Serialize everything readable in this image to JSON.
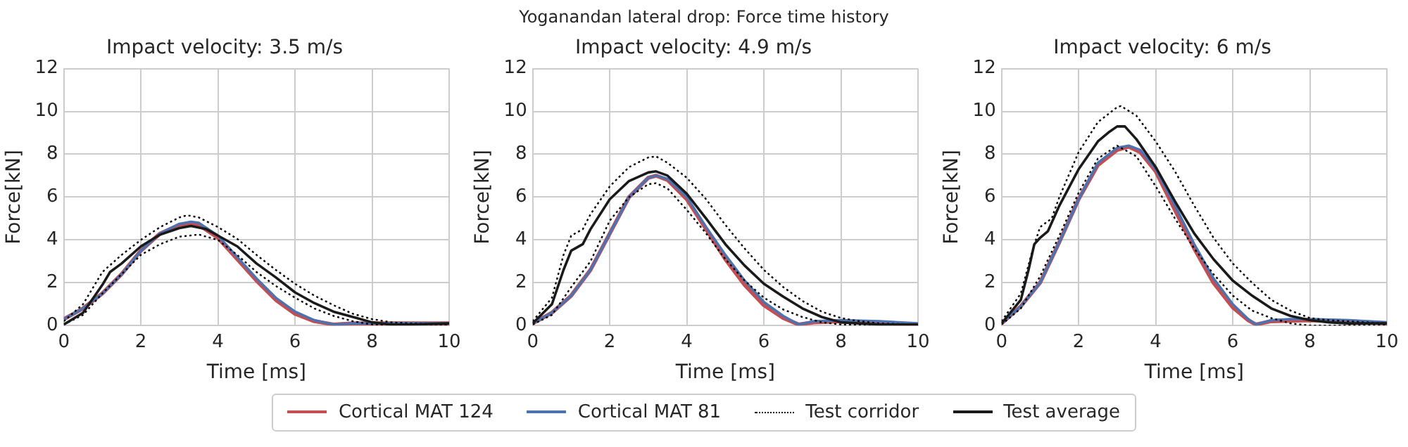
{
  "chart_data": [
    {
      "type": "line",
      "title": "Impact velocity: 3.5 m/s",
      "xlabel": "Time [ms]",
      "ylabel": "Force[kN]",
      "xlim": [
        0,
        10
      ],
      "xticks": [
        0,
        2,
        4,
        6,
        8,
        10
      ],
      "ylim": [
        0,
        12
      ],
      "yticks": [
        0,
        2,
        4,
        6,
        8,
        10,
        12
      ],
      "grid": true,
      "legend": "bottom",
      "marker": "none",
      "annotations": [
        "Yoganandan lateral drop: Force time history"
      ],
      "series": [
        {
          "name": "Cortical MAT 124",
          "color": "#c44e52",
          "line_style": "solid",
          "x": [
            0,
            0.5,
            1,
            1.5,
            2,
            2.5,
            3,
            3.3,
            3.5,
            4,
            4.5,
            5,
            5.5,
            6,
            6.5,
            7,
            7.5,
            8,
            9,
            10
          ],
          "values": [
            0.3,
            0.8,
            1.5,
            2.4,
            3.5,
            4.3,
            4.7,
            4.75,
            4.7,
            4.1,
            3.1,
            2.1,
            1.2,
            0.55,
            0.2,
            0.05,
            0.1,
            0.1,
            0.1,
            0.1
          ]
        },
        {
          "name": "Cortical MAT 81",
          "color": "#4c72b0",
          "line_style": "solid",
          "x": [
            0,
            0.5,
            1,
            1.5,
            2,
            2.5,
            3,
            3.3,
            3.5,
            4,
            4.5,
            5,
            5.5,
            6,
            6.5,
            7,
            7.5,
            8,
            9,
            10
          ],
          "values": [
            0.3,
            0.8,
            1.5,
            2.4,
            3.5,
            4.3,
            4.75,
            4.85,
            4.8,
            4.2,
            3.2,
            2.2,
            1.3,
            0.65,
            0.25,
            0.05,
            0.1,
            0.1,
            0.1,
            0.1
          ]
        },
        {
          "name": "Test corridor",
          "color": "#000000",
          "line_style": "dotted",
          "x": [
            0,
            0.5,
            1,
            1.5,
            2,
            2.5,
            3,
            3.2,
            3.5,
            4,
            4.5,
            5,
            5.5,
            6,
            6.5,
            7,
            7.5,
            8,
            8.5,
            9,
            10
          ],
          "values": [
            0.2,
            1.0,
            2.5,
            3.3,
            4.0,
            4.6,
            5.05,
            5.15,
            5.05,
            4.6,
            4.05,
            3.3,
            2.6,
            1.95,
            1.4,
            0.95,
            0.55,
            0.3,
            0.15,
            0.1,
            0.05
          ]
        },
        {
          "color": "#000000",
          "line_style": "dotted",
          "x": [
            0,
            0.5,
            1,
            1.5,
            2,
            2.5,
            3,
            3.5,
            4,
            4.5,
            5,
            5.5,
            6,
            6.5,
            7,
            7.5,
            8,
            9,
            10
          ],
          "values": [
            0.05,
            0.5,
            1.5,
            2.4,
            3.3,
            3.8,
            4.15,
            4.25,
            4.0,
            3.3,
            2.5,
            1.85,
            1.3,
            0.8,
            0.45,
            0.2,
            0.05,
            0.05,
            0.05
          ]
        },
        {
          "name": "Test average",
          "color": "#1a1a1a",
          "line_style": "solid",
          "x": [
            0,
            0.5,
            1,
            1.2,
            1.5,
            2,
            2.5,
            3,
            3.3,
            3.7,
            4,
            4.5,
            5,
            5.5,
            6,
            6.5,
            7,
            7.5,
            8,
            8.5,
            9,
            10
          ],
          "values": [
            0.05,
            0.6,
            1.9,
            2.5,
            2.9,
            3.7,
            4.25,
            4.55,
            4.65,
            4.5,
            4.2,
            3.7,
            2.9,
            2.25,
            1.55,
            1.05,
            0.65,
            0.4,
            0.15,
            0.05,
            0.05,
            0.1
          ]
        }
      ]
    },
    {
      "type": "line",
      "title": "Impact velocity: 4.9 m/s",
      "xlabel": "Time [ms]",
      "ylabel": "Force[kN]",
      "xlim": [
        0,
        10
      ],
      "xticks": [
        0,
        2,
        4,
        6,
        8,
        10
      ],
      "ylim": [
        0,
        12
      ],
      "yticks": [
        0,
        2,
        4,
        6,
        8,
        10,
        12
      ],
      "grid": true,
      "legend": "bottom",
      "marker": "none",
      "series": [
        {
          "name": "Cortical MAT 124",
          "color": "#c44e52",
          "line_style": "solid",
          "x": [
            0,
            0.5,
            1,
            1.5,
            2,
            2.5,
            3,
            3.2,
            3.5,
            4,
            4.5,
            5,
            5.5,
            6,
            6.5,
            6.9,
            7.3,
            8,
            9,
            10
          ],
          "values": [
            0.1,
            0.6,
            1.4,
            2.6,
            4.3,
            6.0,
            6.9,
            7.0,
            6.8,
            5.9,
            4.5,
            3.1,
            1.9,
            0.95,
            0.35,
            0.05,
            0.15,
            0.2,
            0.1,
            0.05
          ]
        },
        {
          "name": "Cortical MAT 81",
          "color": "#4c72b0",
          "line_style": "solid",
          "x": [
            0,
            0.5,
            1,
            1.5,
            2,
            2.5,
            3,
            3.2,
            3.5,
            4,
            4.5,
            5,
            5.5,
            6,
            6.5,
            6.9,
            7.3,
            8,
            9,
            10
          ],
          "values": [
            0.1,
            0.6,
            1.4,
            2.6,
            4.3,
            6.0,
            6.9,
            7.0,
            6.85,
            6.0,
            4.6,
            3.3,
            2.1,
            1.1,
            0.45,
            0.05,
            0.2,
            0.25,
            0.2,
            0.1
          ]
        },
        {
          "name": "Test corridor",
          "color": "#000000",
          "line_style": "dotted",
          "x": [
            0,
            0.5,
            0.8,
            1,
            1.3,
            1.5,
            2,
            2.5,
            3,
            3.2,
            3.5,
            4,
            4.5,
            5,
            5.5,
            6,
            6.5,
            7,
            7.5,
            8,
            8.5,
            9,
            10
          ],
          "values": [
            0.2,
            1.3,
            3.3,
            4.2,
            4.5,
            5.2,
            6.5,
            7.4,
            7.85,
            7.9,
            7.6,
            6.9,
            5.9,
            4.7,
            3.6,
            2.6,
            1.8,
            1.15,
            0.65,
            0.35,
            0.2,
            0.1,
            0.05
          ]
        },
        {
          "color": "#000000",
          "line_style": "dotted",
          "x": [
            0,
            0.5,
            1,
            1.5,
            2,
            2.5,
            3,
            3.2,
            3.5,
            4,
            4.5,
            5,
            5.5,
            6,
            6.5,
            7,
            7.5,
            8,
            10
          ],
          "values": [
            0.05,
            0.5,
            1.8,
            3.0,
            4.9,
            6.0,
            6.6,
            6.65,
            6.4,
            5.4,
            4.3,
            3.1,
            2.1,
            1.3,
            0.75,
            0.4,
            0.15,
            0.05,
            0.05
          ]
        },
        {
          "name": "Test average",
          "color": "#1a1a1a",
          "line_style": "solid",
          "x": [
            0,
            0.5,
            0.8,
            1,
            1.3,
            1.5,
            2,
            2.5,
            3,
            3.2,
            3.5,
            4,
            4.5,
            5,
            5.5,
            6,
            6.5,
            7,
            7.5,
            8,
            9,
            10
          ],
          "values": [
            0.1,
            1.0,
            2.6,
            3.5,
            3.8,
            4.5,
            5.9,
            6.75,
            7.15,
            7.2,
            7.0,
            6.15,
            5.0,
            3.8,
            2.8,
            1.95,
            1.35,
            0.8,
            0.4,
            0.15,
            0.05,
            0.05
          ]
        }
      ]
    },
    {
      "type": "line",
      "title": "Impact velocity: 6 m/s",
      "xlabel": "Time [ms]",
      "ylabel": "Force[kN]",
      "xlim": [
        0,
        10
      ],
      "xticks": [
        0,
        2,
        4,
        6,
        8,
        10
      ],
      "ylim": [
        0,
        12
      ],
      "yticks": [
        0,
        2,
        4,
        6,
        8,
        10,
        12
      ],
      "grid": true,
      "legend": "bottom",
      "marker": "none",
      "series": [
        {
          "name": "Cortical MAT 124",
          "color": "#c44e52",
          "line_style": "solid",
          "x": [
            0,
            0.5,
            1,
            1.5,
            2,
            2.5,
            3,
            3.3,
            3.6,
            4,
            4.5,
            5,
            5.5,
            6,
            6.4,
            6.6,
            7,
            8,
            9,
            10
          ],
          "values": [
            0.1,
            0.9,
            2.0,
            3.9,
            5.9,
            7.5,
            8.2,
            8.35,
            8.1,
            7.2,
            5.4,
            3.6,
            2.0,
            0.85,
            0.25,
            0.05,
            0.2,
            0.25,
            0.2,
            0.1
          ]
        },
        {
          "name": "Cortical MAT 81",
          "color": "#4c72b0",
          "line_style": "solid",
          "x": [
            0,
            0.5,
            1,
            1.5,
            2,
            2.5,
            3,
            3.3,
            3.6,
            4,
            4.5,
            5,
            5.5,
            6,
            6.4,
            6.6,
            7,
            7.5,
            8,
            9,
            10
          ],
          "values": [
            0.1,
            0.9,
            2.0,
            3.9,
            5.9,
            7.6,
            8.3,
            8.4,
            8.2,
            7.3,
            5.6,
            3.8,
            2.2,
            1.0,
            0.3,
            0.05,
            0.25,
            0.3,
            0.3,
            0.25,
            0.15
          ]
        },
        {
          "name": "Test corridor",
          "color": "#000000",
          "line_style": "dotted",
          "x": [
            0,
            0.5,
            0.8,
            1,
            1.3,
            1.5,
            2,
            2.5,
            3,
            3.1,
            3.5,
            4,
            4.5,
            5,
            5.5,
            6,
            6.5,
            7,
            7.5,
            8,
            8.5,
            9,
            10
          ],
          "values": [
            0.2,
            1.5,
            3.5,
            4.6,
            5.0,
            6.0,
            8.1,
            9.5,
            10.2,
            10.25,
            9.8,
            8.6,
            7.2,
            5.6,
            4.1,
            2.9,
            2.0,
            1.2,
            0.7,
            0.35,
            0.25,
            0.2,
            0.1
          ]
        },
        {
          "color": "#000000",
          "line_style": "dotted",
          "x": [
            0,
            0.5,
            1,
            1.5,
            2,
            2.5,
            3,
            3.5,
            4,
            4.5,
            5,
            5.5,
            6,
            6.5,
            7,
            7.5,
            8,
            9,
            10
          ],
          "values": [
            0.05,
            0.8,
            2.3,
            4.2,
            6.2,
            7.8,
            8.4,
            7.9,
            6.5,
            5.0,
            3.6,
            2.4,
            1.4,
            0.7,
            0.35,
            0.1,
            0.0,
            0.0,
            0.05
          ]
        },
        {
          "name": "Test average",
          "color": "#1a1a1a",
          "line_style": "solid",
          "x": [
            0,
            0.5,
            0.7,
            0.85,
            1,
            1.2,
            1.5,
            2,
            2.5,
            2.8,
            3,
            3.2,
            3.5,
            4,
            4.5,
            5,
            5.5,
            6,
            6.5,
            7,
            7.5,
            8,
            8.5,
            9,
            10
          ],
          "values": [
            0.1,
            1.2,
            2.6,
            3.8,
            4.1,
            4.4,
            5.6,
            7.3,
            8.6,
            9.05,
            9.3,
            9.3,
            8.7,
            7.4,
            5.8,
            4.3,
            3.1,
            2.1,
            1.4,
            0.8,
            0.45,
            0.25,
            0.15,
            0.1,
            0.1
          ]
        }
      ]
    }
  ]
}
